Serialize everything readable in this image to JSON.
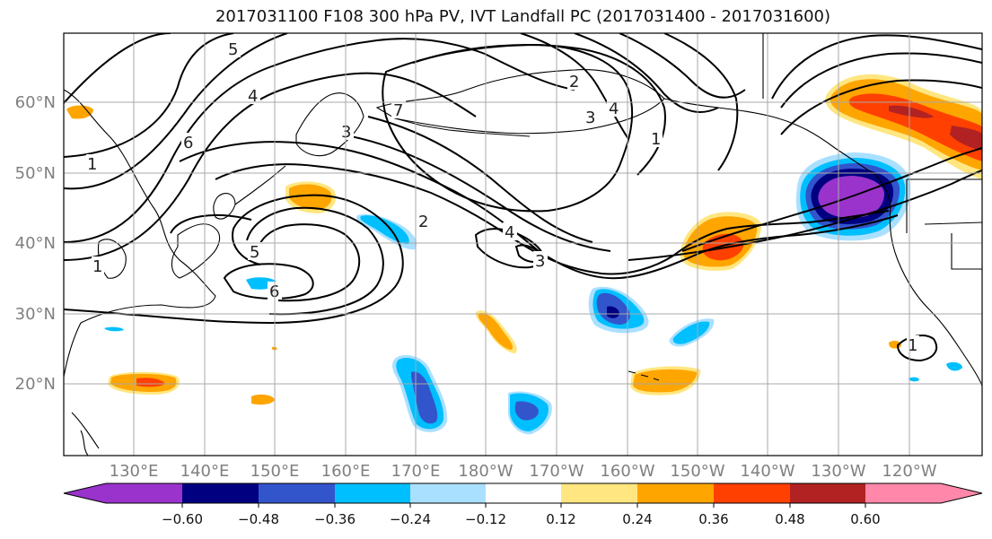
{
  "title": "2017031100 F108 300 hPa PV, IVT Landfall PC (2017031400 - 2017031600)",
  "lat_labels": [
    "60°N",
    "50°N",
    "40°N",
    "30°N",
    "20°N"
  ],
  "lon_labels": [
    "130°E",
    "140°E",
    "150°E",
    "160°E",
    "170°E",
    "180°W",
    "170°W",
    "160°W",
    "150°W",
    "140°W",
    "130°W",
    "120°W"
  ],
  "colorbar": {
    "ticks": [
      "−0.60",
      "−0.48",
      "−0.36",
      "−0.24",
      "−0.12",
      "0.12",
      "0.24",
      "0.36",
      "0.48",
      "0.60"
    ],
    "colors": [
      "#9933cc",
      "#000080",
      "#3355cc",
      "#00bfff",
      "#aae0ff",
      "#ffffff",
      "#ffe680",
      "#ffa500",
      "#ff4000",
      "#b22222",
      "#ff88aa"
    ]
  },
  "pv_contour_labels": [
    "5",
    "4",
    "3",
    "7",
    "1",
    "1",
    "2",
    "3",
    "4",
    "5",
    "6",
    "4",
    "2",
    "1",
    "3",
    "6",
    "1"
  ],
  "shading_colors": {
    "light_blue": "#aae0ff",
    "sky_blue": "#00bfff",
    "mid_blue": "#3355cc",
    "navy": "#000080",
    "purple": "#9933cc",
    "yellow": "#ffe680",
    "orange": "#ffa500",
    "red_orange": "#ff4000",
    "dark_red": "#b22222"
  }
}
